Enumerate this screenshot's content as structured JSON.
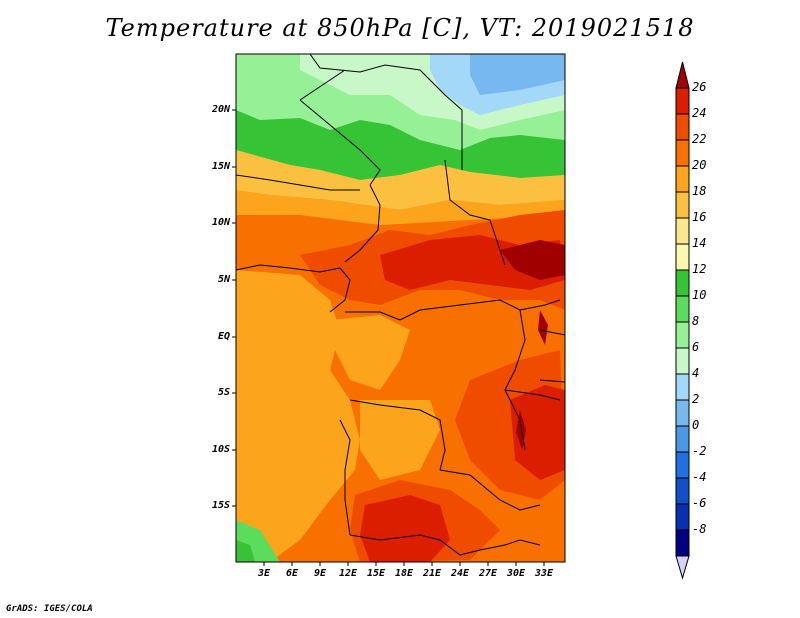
{
  "title": "Temperature at 850hPa [C], VT: 2019021518",
  "y_ticks": [
    "20N",
    "15N",
    "10N",
    "5N",
    "EQ",
    "5S",
    "10S",
    "15S"
  ],
  "x_ticks": [
    "3E",
    "6E",
    "9E",
    "12E",
    "15E",
    "18E",
    "21E",
    "24E",
    "27E",
    "30E",
    "33E"
  ],
  "colorbar": {
    "labels": [
      "26",
      "24",
      "22",
      "20",
      "18",
      "16",
      "14",
      "12",
      "10",
      "8",
      "6",
      "4",
      "2",
      "0",
      "-2",
      "-4",
      "-6",
      "-8"
    ],
    "colors": [
      "#a00000",
      "#dc1e00",
      "#f04c00",
      "#f87000",
      "#fca41c",
      "#fcc040",
      "#fce88c",
      "#fcf8b0",
      "#36c436",
      "#5cdc5c",
      "#96f096",
      "#c8f8c8",
      "#a4d8f8",
      "#78b8f0",
      "#4c98e8",
      "#2070e0",
      "#1050c8",
      "#0830b0",
      "#000080",
      "#d4d4f8"
    ]
  },
  "credit": "GrADS: IGES/COLA"
}
